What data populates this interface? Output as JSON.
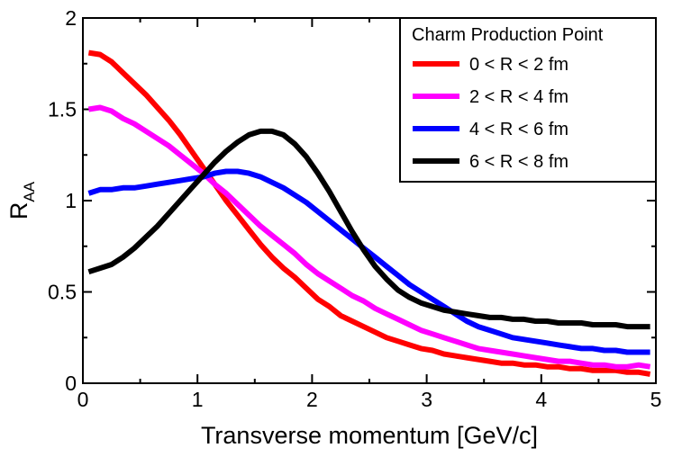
{
  "chart_data": {
    "type": "line",
    "title": "",
    "xlabel": "Transverse momentum [GeV/c]",
    "ylabel_main": "R",
    "ylabel_sub": "AA",
    "xlim": [
      0,
      5
    ],
    "ylim": [
      0,
      2
    ],
    "x_ticks": [
      "0",
      "1",
      "2",
      "3",
      "4",
      "5"
    ],
    "y_ticks": [
      "0",
      "0.5",
      "1",
      "1.5",
      "2"
    ],
    "grid": false,
    "legend": {
      "title": "Charm Production Point",
      "position": "top-right"
    },
    "series": [
      {
        "name": "0 < R < 2 fm",
        "color": "#ff0000",
        "x": [
          0.05,
          0.15,
          0.25,
          0.35,
          0.45,
          0.55,
          0.65,
          0.75,
          0.85,
          0.95,
          1.05,
          1.15,
          1.25,
          1.35,
          1.45,
          1.55,
          1.65,
          1.75,
          1.85,
          1.95,
          2.05,
          2.15,
          2.25,
          2.35,
          2.45,
          2.55,
          2.65,
          2.75,
          2.85,
          2.95,
          3.05,
          3.15,
          3.25,
          3.35,
          3.45,
          3.55,
          3.65,
          3.75,
          3.85,
          3.95,
          4.05,
          4.15,
          4.25,
          4.35,
          4.45,
          4.55,
          4.65,
          4.75,
          4.85,
          4.95
        ],
        "values": [
          1.81,
          1.8,
          1.76,
          1.7,
          1.64,
          1.58,
          1.51,
          1.44,
          1.36,
          1.27,
          1.18,
          1.09,
          1.0,
          0.92,
          0.84,
          0.76,
          0.69,
          0.63,
          0.58,
          0.52,
          0.46,
          0.42,
          0.37,
          0.34,
          0.31,
          0.28,
          0.25,
          0.23,
          0.21,
          0.19,
          0.18,
          0.16,
          0.15,
          0.14,
          0.13,
          0.12,
          0.11,
          0.11,
          0.1,
          0.1,
          0.09,
          0.09,
          0.08,
          0.08,
          0.07,
          0.07,
          0.07,
          0.06,
          0.06,
          0.05
        ]
      },
      {
        "name": "2 < R < 4 fm",
        "color": "#ff00ff",
        "x": [
          0.05,
          0.15,
          0.25,
          0.35,
          0.45,
          0.55,
          0.65,
          0.75,
          0.85,
          0.95,
          1.05,
          1.15,
          1.25,
          1.35,
          1.45,
          1.55,
          1.65,
          1.75,
          1.85,
          1.95,
          2.05,
          2.15,
          2.25,
          2.35,
          2.45,
          2.55,
          2.65,
          2.75,
          2.85,
          2.95,
          3.05,
          3.15,
          3.25,
          3.35,
          3.45,
          3.55,
          3.65,
          3.75,
          3.85,
          3.95,
          4.05,
          4.15,
          4.25,
          4.35,
          4.45,
          4.55,
          4.65,
          4.75,
          4.85,
          4.95
        ],
        "values": [
          1.5,
          1.51,
          1.49,
          1.45,
          1.42,
          1.38,
          1.34,
          1.3,
          1.25,
          1.2,
          1.15,
          1.09,
          1.04,
          0.98,
          0.92,
          0.86,
          0.81,
          0.76,
          0.71,
          0.65,
          0.6,
          0.56,
          0.52,
          0.48,
          0.45,
          0.41,
          0.38,
          0.35,
          0.32,
          0.29,
          0.27,
          0.25,
          0.23,
          0.21,
          0.19,
          0.18,
          0.17,
          0.16,
          0.15,
          0.14,
          0.13,
          0.12,
          0.12,
          0.11,
          0.1,
          0.1,
          0.09,
          0.09,
          0.1,
          0.09
        ]
      },
      {
        "name": "4 < R < 6 fm",
        "color": "#0000ff",
        "x": [
          0.05,
          0.15,
          0.25,
          0.35,
          0.45,
          0.55,
          0.65,
          0.75,
          0.85,
          0.95,
          1.05,
          1.15,
          1.25,
          1.35,
          1.45,
          1.55,
          1.65,
          1.75,
          1.85,
          1.95,
          2.05,
          2.15,
          2.25,
          2.35,
          2.45,
          2.55,
          2.65,
          2.75,
          2.85,
          2.95,
          3.05,
          3.15,
          3.25,
          3.35,
          3.45,
          3.55,
          3.65,
          3.75,
          3.85,
          3.95,
          4.05,
          4.15,
          4.25,
          4.35,
          4.45,
          4.55,
          4.65,
          4.75,
          4.85,
          4.95
        ],
        "values": [
          1.04,
          1.06,
          1.06,
          1.07,
          1.07,
          1.08,
          1.09,
          1.1,
          1.11,
          1.12,
          1.13,
          1.15,
          1.16,
          1.16,
          1.15,
          1.13,
          1.1,
          1.07,
          1.03,
          0.99,
          0.94,
          0.89,
          0.84,
          0.79,
          0.74,
          0.69,
          0.64,
          0.59,
          0.54,
          0.5,
          0.46,
          0.42,
          0.38,
          0.34,
          0.31,
          0.29,
          0.27,
          0.25,
          0.24,
          0.23,
          0.22,
          0.21,
          0.2,
          0.19,
          0.19,
          0.18,
          0.18,
          0.17,
          0.17,
          0.17
        ]
      },
      {
        "name": "6 < R < 8 fm",
        "color": "#000000",
        "x": [
          0.05,
          0.15,
          0.25,
          0.35,
          0.45,
          0.55,
          0.65,
          0.75,
          0.85,
          0.95,
          1.05,
          1.15,
          1.25,
          1.35,
          1.45,
          1.55,
          1.65,
          1.75,
          1.85,
          1.95,
          2.05,
          2.15,
          2.25,
          2.35,
          2.45,
          2.55,
          2.65,
          2.75,
          2.85,
          2.95,
          3.05,
          3.15,
          3.25,
          3.35,
          3.45,
          3.55,
          3.65,
          3.75,
          3.85,
          3.95,
          4.05,
          4.15,
          4.25,
          4.35,
          4.45,
          4.55,
          4.65,
          4.75,
          4.85,
          4.95
        ],
        "values": [
          0.61,
          0.63,
          0.65,
          0.69,
          0.74,
          0.8,
          0.86,
          0.93,
          1.0,
          1.07,
          1.14,
          1.21,
          1.27,
          1.32,
          1.36,
          1.38,
          1.38,
          1.36,
          1.31,
          1.24,
          1.15,
          1.05,
          0.94,
          0.83,
          0.73,
          0.64,
          0.57,
          0.51,
          0.47,
          0.44,
          0.42,
          0.4,
          0.39,
          0.38,
          0.37,
          0.36,
          0.36,
          0.35,
          0.35,
          0.34,
          0.34,
          0.33,
          0.33,
          0.33,
          0.32,
          0.32,
          0.32,
          0.31,
          0.31,
          0.31
        ]
      }
    ]
  }
}
